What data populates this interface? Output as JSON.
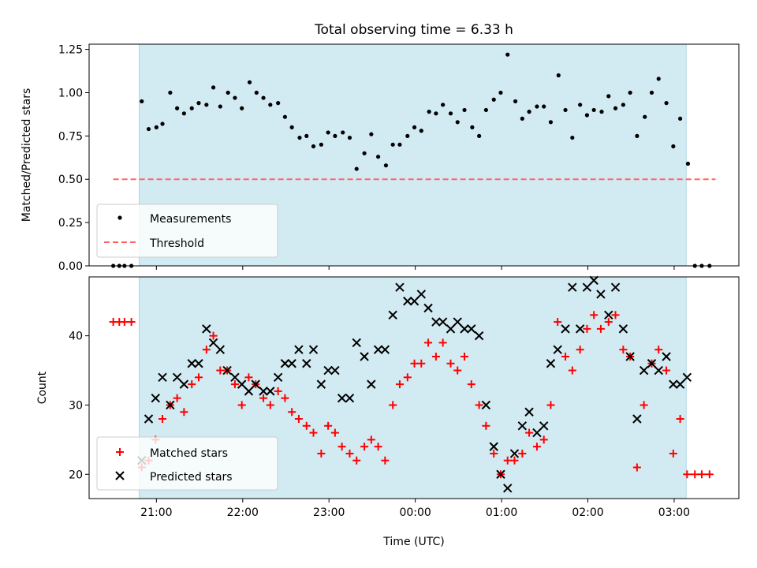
{
  "title": "Total observing time = 6.33 h",
  "colors": {
    "shade": "#add8e6",
    "measurement": "#000000",
    "threshold": "#ff6666",
    "matched": "#ff0000",
    "predicted": "#000000"
  },
  "chart_data": [
    {
      "type": "scatter",
      "panel": "top",
      "ylabel": "Matched/Predicted stars",
      "ylim": [
        0,
        1.28
      ],
      "yticks": [
        0.0,
        0.25,
        0.5,
        0.75,
        1.0,
        1.25
      ],
      "ytick_labels": [
        "0.00",
        "0.25",
        "0.50",
        "0.75",
        "1.00",
        "1.25"
      ],
      "xlim": [
        20.22,
        27.75
      ],
      "shaded_range": [
        20.8,
        27.14
      ],
      "legend": [
        "Measurements",
        "Threshold"
      ],
      "legend_position": "lower-left",
      "threshold": {
        "y": 0.5,
        "x": [
          20.5,
          27.48
        ]
      },
      "series": [
        {
          "name": "Measurements",
          "marker": "point",
          "x": [
            20.5,
            20.57,
            20.63,
            20.71,
            20.83,
            20.91,
            21.0,
            21.07,
            21.16,
            21.24,
            21.32,
            21.41,
            21.49,
            21.58,
            21.66,
            21.74,
            21.83,
            21.91,
            21.99,
            22.08,
            22.16,
            22.24,
            22.32,
            22.41,
            22.49,
            22.57,
            22.66,
            22.74,
            22.82,
            22.91,
            22.99,
            23.07,
            23.16,
            23.24,
            23.32,
            23.41,
            23.49,
            23.57,
            23.66,
            23.74,
            23.82,
            23.91,
            23.99,
            24.07,
            24.16,
            24.24,
            24.32,
            24.41,
            24.49,
            24.57,
            24.66,
            24.74,
            24.82,
            24.91,
            24.99,
            25.07,
            25.16,
            25.24,
            25.32,
            25.41,
            25.49,
            25.57,
            25.66,
            25.74,
            25.82,
            25.91,
            25.99,
            26.07,
            26.16,
            26.24,
            26.32,
            26.41,
            26.49,
            26.57,
            26.66,
            26.74,
            26.82,
            26.91,
            26.99,
            27.07,
            27.16,
            27.24,
            27.32,
            27.41
          ],
          "y": [
            0.0,
            0.0,
            0.0,
            0.0,
            0.95,
            0.79,
            0.8,
            0.82,
            1.0,
            0.91,
            0.88,
            0.91,
            0.94,
            0.93,
            1.03,
            0.92,
            1.0,
            0.97,
            0.91,
            1.06,
            1.0,
            0.97,
            0.93,
            0.94,
            0.86,
            0.8,
            0.74,
            0.75,
            0.69,
            0.7,
            0.77,
            0.75,
            0.77,
            0.74,
            0.56,
            0.65,
            0.76,
            0.63,
            0.58,
            0.7,
            0.7,
            0.75,
            0.8,
            0.78,
            0.89,
            0.88,
            0.93,
            0.88,
            0.83,
            0.9,
            0.8,
            0.75,
            0.9,
            0.96,
            1.0,
            1.22,
            0.95,
            0.85,
            0.89,
            0.92,
            0.92,
            0.83,
            1.1,
            0.9,
            0.74,
            0.93,
            0.87,
            0.9,
            0.89,
            0.98,
            0.91,
            0.93,
            1.0,
            0.75,
            0.86,
            1.0,
            1.08,
            0.94,
            0.69,
            0.85,
            0.59,
            0.0,
            0.0,
            0.0
          ]
        }
      ]
    },
    {
      "type": "scatter",
      "panel": "bottom",
      "xlabel": "Time (UTC)",
      "ylabel": "Count",
      "xticks": [
        21,
        22,
        23,
        24,
        25,
        26,
        27
      ],
      "xtick_labels": [
        "21:00",
        "22:00",
        "23:00",
        "00:00",
        "01:00",
        "02:00",
        "03:00"
      ],
      "ylim": [
        16.5,
        48.5
      ],
      "yticks": [
        20,
        30,
        40
      ],
      "ytick_labels": [
        "20",
        "30",
        "40"
      ],
      "xlim": [
        20.22,
        27.75
      ],
      "shaded_range": [
        20.8,
        27.14
      ],
      "legend": [
        "Matched stars",
        "Predicted stars"
      ],
      "legend_position": "lower-left",
      "series": [
        {
          "name": "Matched stars",
          "marker": "plus",
          "x": [
            20.5,
            20.57,
            20.63,
            20.71,
            20.83,
            20.91,
            20.99,
            21.07,
            21.16,
            21.24,
            21.32,
            21.41,
            21.49,
            21.58,
            21.66,
            21.74,
            21.82,
            21.91,
            21.99,
            22.07,
            22.15,
            22.24,
            22.32,
            22.41,
            22.49,
            22.57,
            22.65,
            22.74,
            22.82,
            22.91,
            22.99,
            23.07,
            23.15,
            23.24,
            23.32,
            23.41,
            23.49,
            23.57,
            23.65,
            23.74,
            23.82,
            23.91,
            23.99,
            24.07,
            24.15,
            24.24,
            24.32,
            24.41,
            24.49,
            24.57,
            24.65,
            24.74,
            24.82,
            24.91,
            24.99,
            25.07,
            25.15,
            25.24,
            25.32,
            25.41,
            25.49,
            25.57,
            25.65,
            25.74,
            25.82,
            25.91,
            25.99,
            26.07,
            26.15,
            26.24,
            26.32,
            26.41,
            26.49,
            26.57,
            26.65,
            26.74,
            26.82,
            26.91,
            26.99,
            27.07,
            27.15,
            27.24,
            27.32,
            27.41
          ],
          "y": [
            42,
            42,
            42,
            42,
            21,
            22,
            25,
            28,
            30,
            31,
            29,
            33,
            34,
            38,
            40,
            35,
            35,
            33,
            30,
            34,
            33,
            31,
            30,
            32,
            31,
            29,
            28,
            27,
            26,
            23,
            27,
            26,
            24,
            23,
            22,
            24,
            25,
            24,
            22,
            30,
            33,
            34,
            36,
            36,
            39,
            37,
            39,
            36,
            35,
            37,
            33,
            30,
            27,
            23,
            20,
            22,
            22,
            23,
            26,
            24,
            25,
            30,
            42,
            37,
            35,
            38,
            41,
            43,
            41,
            42,
            43,
            38,
            37,
            21,
            30,
            36,
            38,
            35,
            23,
            28,
            20,
            20,
            20,
            20
          ]
        },
        {
          "name": "Predicted stars",
          "marker": "x",
          "x": [
            20.83,
            20.91,
            20.99,
            21.07,
            21.16,
            21.24,
            21.32,
            21.41,
            21.49,
            21.58,
            21.66,
            21.74,
            21.82,
            21.91,
            21.99,
            22.07,
            22.15,
            22.24,
            22.32,
            22.41,
            22.49,
            22.57,
            22.65,
            22.74,
            22.82,
            22.91,
            22.99,
            23.07,
            23.15,
            23.24,
            23.32,
            23.41,
            23.49,
            23.57,
            23.65,
            23.74,
            23.82,
            23.91,
            23.99,
            24.07,
            24.15,
            24.24,
            24.32,
            24.41,
            24.49,
            24.57,
            24.65,
            24.74,
            24.82,
            24.91,
            24.99,
            25.07,
            25.15,
            25.24,
            25.32,
            25.41,
            25.49,
            25.57,
            25.65,
            25.74,
            25.82,
            25.91,
            25.99,
            26.07,
            26.15,
            26.24,
            26.32,
            26.41,
            26.49,
            26.57,
            26.65,
            26.74,
            26.82,
            26.91,
            26.99,
            27.07,
            27.15
          ],
          "y": [
            22,
            28,
            31,
            34,
            30,
            34,
            33,
            36,
            36,
            41,
            39,
            38,
            35,
            34,
            33,
            32,
            33,
            32,
            32,
            34,
            36,
            36,
            38,
            36,
            38,
            33,
            35,
            35,
            31,
            31,
            39,
            37,
            33,
            38,
            38,
            43,
            47,
            45,
            45,
            46,
            44,
            42,
            42,
            41,
            42,
            41,
            41,
            40,
            30,
            24,
            20,
            18,
            23,
            27,
            29,
            26,
            27,
            36,
            38,
            41,
            47,
            41,
            47,
            48,
            46,
            43,
            47,
            41,
            37,
            28,
            35,
            36,
            35,
            37,
            33,
            33,
            34
          ]
        }
      ]
    }
  ]
}
